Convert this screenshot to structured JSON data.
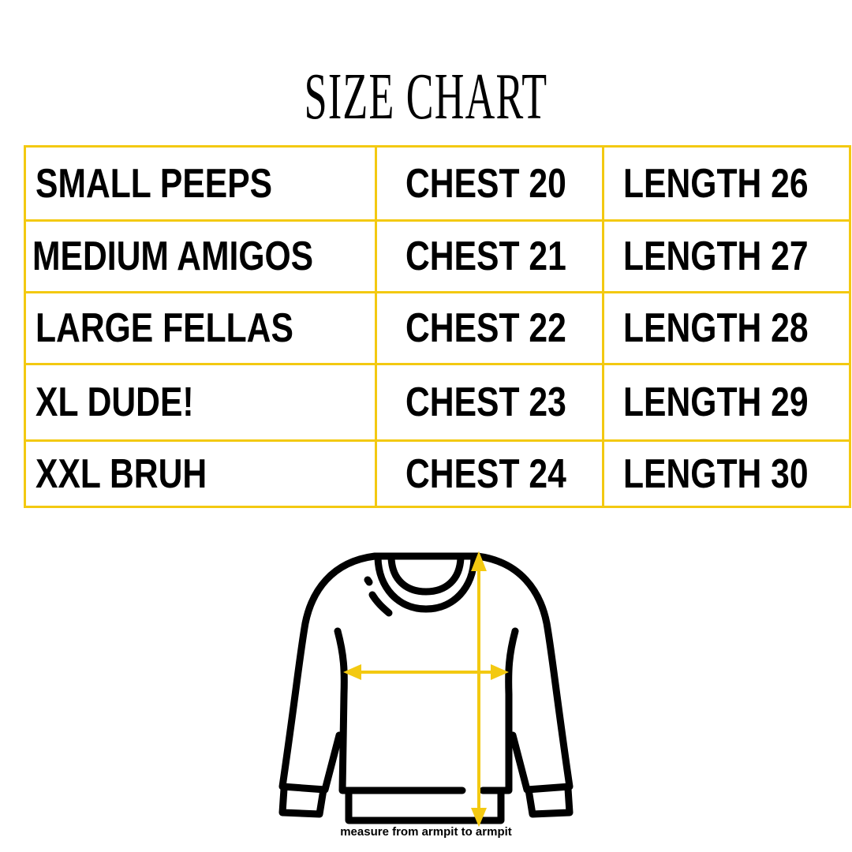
{
  "title": "SIZE CHART",
  "colors": {
    "accent": "#f3c911",
    "text": "#000000"
  },
  "rows": [
    {
      "size": "SMALL PEEPS",
      "chest": "CHEST 20",
      "length": "LENGTH 26"
    },
    {
      "size": "MEDIUM AMIGOS",
      "chest": "CHEST 21",
      "length": "LENGTH 27"
    },
    {
      "size": "LARGE FELLAS",
      "chest": "CHEST 22",
      "length": "LENGTH 28"
    },
    {
      "size": "XL DUDE!",
      "chest": "CHEST 23",
      "length": "LENGTH 29"
    },
    {
      "size": "XXL BRUH",
      "chest": "CHEST 24",
      "length": "LENGTH 30"
    }
  ],
  "illustration": {
    "icon": "sweatshirt-icon",
    "caption": "measure from armpit to armpit"
  }
}
